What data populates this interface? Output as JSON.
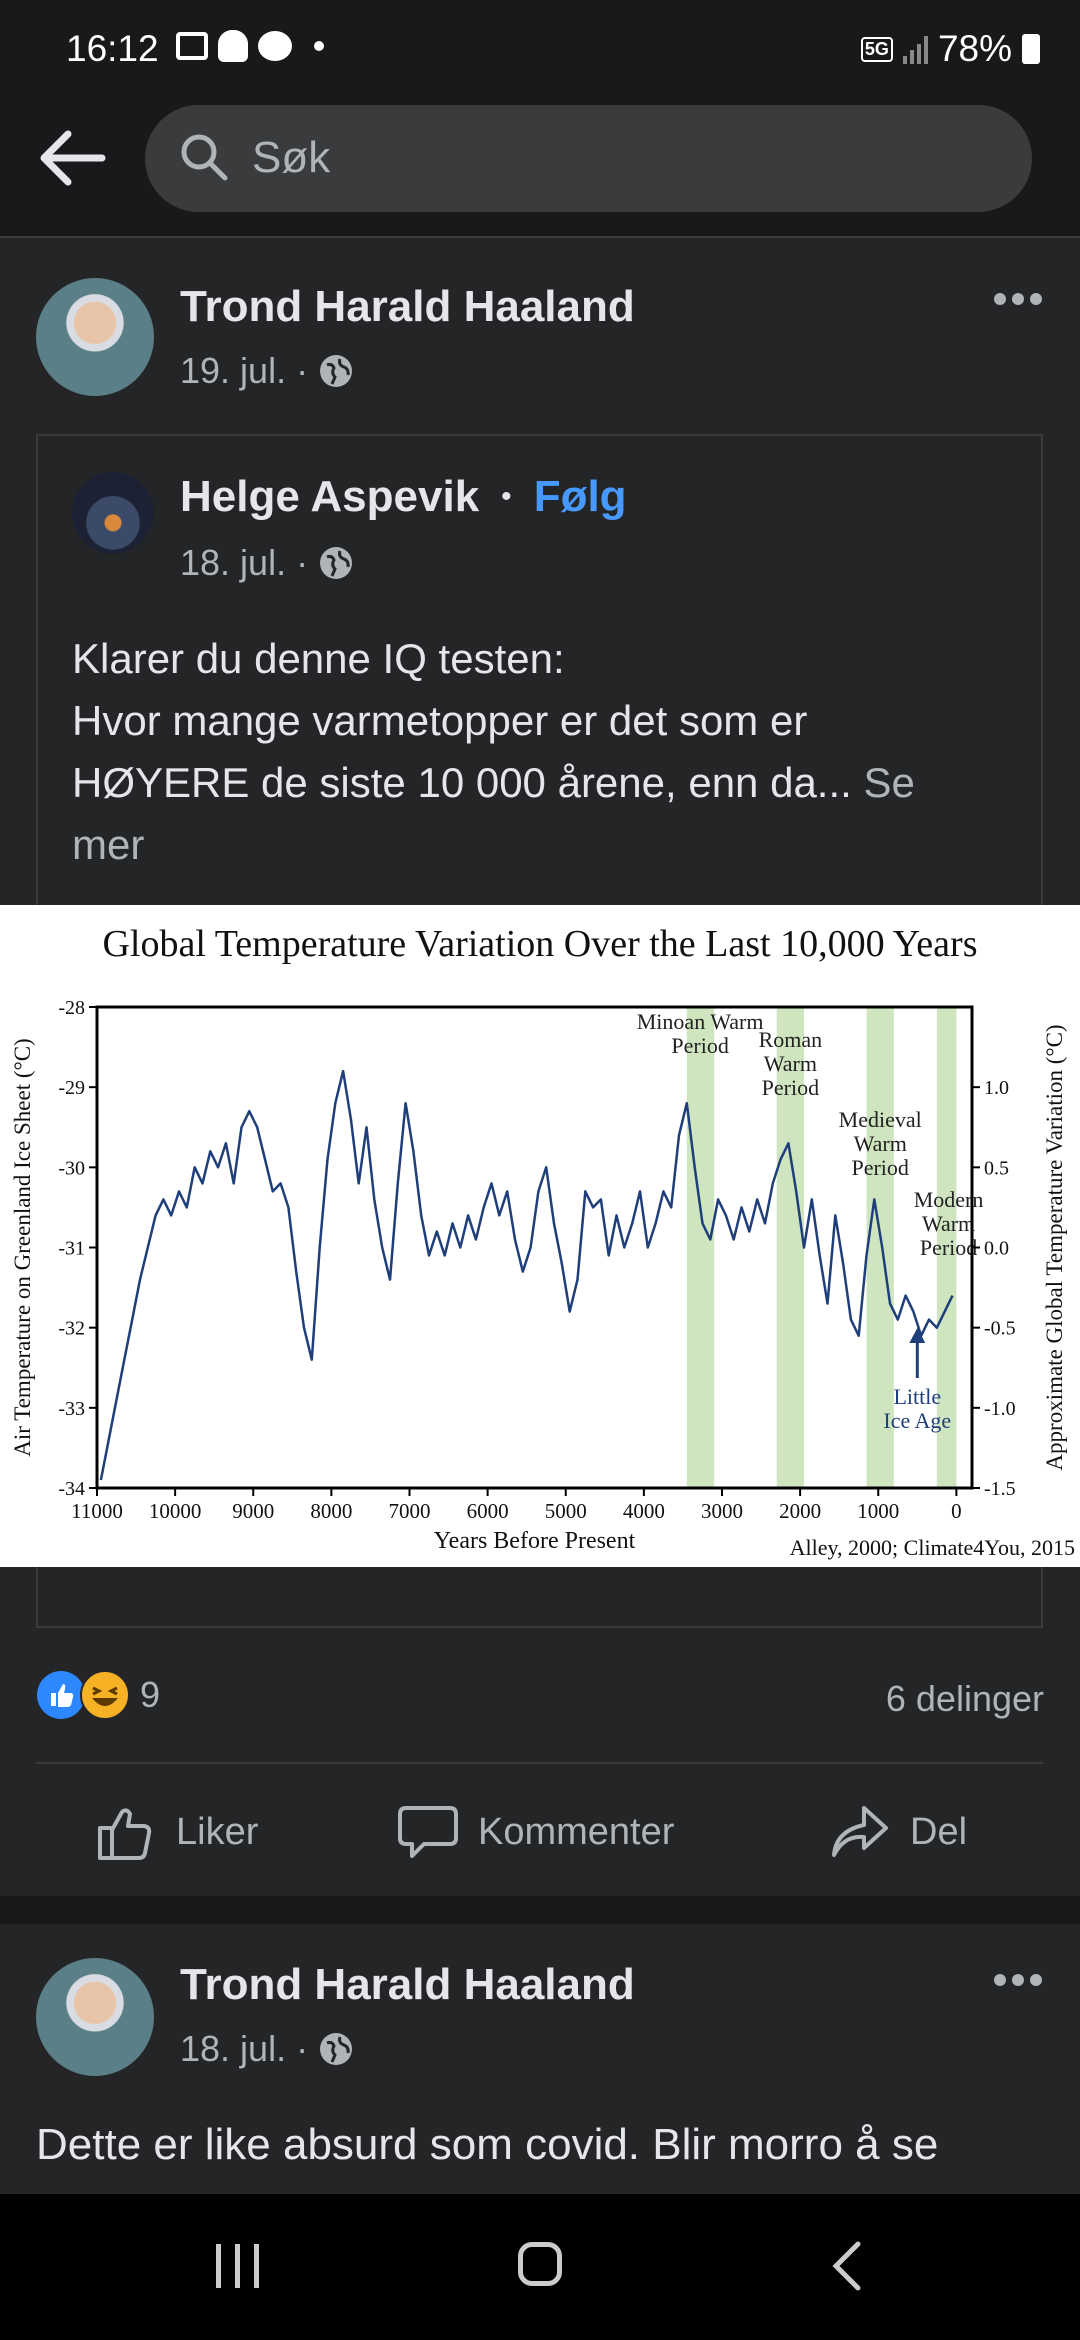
{
  "status": {
    "time": "16:12",
    "network": "5G",
    "battery": "78%"
  },
  "search": {
    "placeholder": "Søk"
  },
  "post": {
    "author": "Trond Harald Haaland",
    "date": "19. jul. ·",
    "shared": {
      "author": "Helge Aspevik",
      "dot": "•",
      "follow": "Følg",
      "date": "18. jul. ·",
      "text_line1": "Klarer du denne IQ testen:",
      "text_line2": "Hvor mange varmetopper er det som er",
      "text_line3": "HØYERE de siste 10 000 årene, enn da...",
      "see_more_1": " Se",
      "see_more_2": "mer"
    },
    "reactions_count": "9",
    "shares": "6 delinger",
    "actions": {
      "like": "Liker",
      "comment": "Kommenter",
      "share": "Del"
    }
  },
  "post2": {
    "author": "Trond Harald Haaland",
    "date": "18. jul. ·",
    "text": "Dette er like absurd som covid. Blir morro å se"
  },
  "chart_data": {
    "type": "line",
    "title": "Global Temperature Variation Over the Last 10,000 Years",
    "xlabel": "Years Before Present",
    "ylabel": "Air Temperature on Greenland Ice Sheet (°C)",
    "y2label": "Approximate Global Temperature Variation (°C)",
    "xlim": [
      11000,
      -200
    ],
    "ylim": [
      -34,
      -28
    ],
    "y2lim": [
      -1.5,
      1.5
    ],
    "xticks": [
      11000,
      10000,
      9000,
      8000,
      7000,
      6000,
      5000,
      4000,
      3000,
      2000,
      1000,
      0
    ],
    "xtick_labels": [
      "11000",
      "10000",
      "9000",
      "8000",
      "7000",
      "6000",
      "5000",
      "4000",
      "3000",
      "2000",
      "1000",
      "0"
    ],
    "yticks": [
      -28,
      -29,
      -30,
      -31,
      -32,
      -33,
      -34
    ],
    "ytick_labels": [
      "-28",
      "-29",
      "-30",
      "-31",
      "-32",
      "-33",
      "-34"
    ],
    "y2ticks": [
      1.0,
      0.5,
      0.0,
      -0.5,
      -1.0,
      -1.5
    ],
    "y2tick_labels": [
      "1.0",
      "0.5",
      "0.0",
      "-0.5",
      "-1.0",
      "-1.5"
    ],
    "source": "Alley, 2000; Climate4You, 2015",
    "periods": [
      {
        "name1": "Minoan Warm",
        "name2": "Period",
        "name3": "",
        "from": 3450,
        "to": 3100
      },
      {
        "name1": "Roman",
        "name2": "Warm",
        "name3": "Period",
        "from": 2300,
        "to": 1950
      },
      {
        "name1": "Medieval",
        "name2": "Warm",
        "name3": "Period",
        "from": 1150,
        "to": 800
      },
      {
        "name1": "Modern",
        "name2": "Warm",
        "name3": "Period",
        "from": 250,
        "to": 0
      }
    ],
    "annotation": {
      "line1": "Little",
      "line2": "Ice Age",
      "x": 500
    },
    "series": [
      {
        "x": [
          10950,
          10850,
          10750,
          10650,
          10550,
          10450,
          10350,
          10250,
          10150,
          10050,
          9950,
          9850,
          9750,
          9650,
          9550,
          9450,
          9350,
          9250,
          9150,
          9050,
          8950,
          8850,
          8750,
          8650,
          8550,
          8450,
          8350,
          8250,
          8150,
          8050,
          7950,
          7850,
          7750,
          7650,
          7550,
          7450,
          7350,
          7250,
          7150,
          7050,
          6950,
          6850,
          6750,
          6650,
          6550,
          6450,
          6350,
          6250,
          6150,
          6050,
          5950,
          5850,
          5750,
          5650,
          5550,
          5450,
          5350,
          5250,
          5150,
          5050,
          4950,
          4850,
          4750,
          4650,
          4550,
          4450,
          4350,
          4250,
          4150,
          4050,
          3950,
          3850,
          3750,
          3650,
          3550,
          3450,
          3350,
          3250,
          3150,
          3050,
          2950,
          2850,
          2750,
          2650,
          2550,
          2450,
          2350,
          2250,
          2150,
          2050,
          1950,
          1850,
          1750,
          1650,
          1550,
          1450,
          1350,
          1250,
          1150,
          1050,
          950,
          850,
          750,
          650,
          550,
          450,
          350,
          250,
          150,
          50
        ],
        "values": [
          -33.9,
          -33.4,
          -32.9,
          -32.4,
          -31.9,
          -31.4,
          -31.0,
          -30.6,
          -30.4,
          -30.6,
          -30.3,
          -30.5,
          -30.0,
          -30.2,
          -29.8,
          -30.0,
          -29.7,
          -30.2,
          -29.5,
          -29.3,
          -29.5,
          -29.9,
          -30.3,
          -30.2,
          -30.5,
          -31.3,
          -32.0,
          -32.4,
          -31.0,
          -29.9,
          -29.2,
          -28.8,
          -29.4,
          -30.2,
          -29.5,
          -30.4,
          -31.0,
          -31.4,
          -30.2,
          -29.2,
          -29.8,
          -30.6,
          -31.1,
          -30.8,
          -31.1,
          -30.7,
          -31.0,
          -30.6,
          -30.9,
          -30.5,
          -30.2,
          -30.6,
          -30.3,
          -30.9,
          -31.3,
          -31.0,
          -30.3,
          -30.0,
          -30.7,
          -31.2,
          -31.8,
          -31.4,
          -30.3,
          -30.5,
          -30.4,
          -31.1,
          -30.6,
          -31.0,
          -30.7,
          -30.3,
          -31.0,
          -30.7,
          -30.3,
          -30.5,
          -29.6,
          -29.2,
          -30.0,
          -30.7,
          -30.9,
          -30.4,
          -30.6,
          -30.9,
          -30.5,
          -30.8,
          -30.4,
          -30.7,
          -30.2,
          -29.9,
          -29.7,
          -30.3,
          -31.0,
          -30.4,
          -31.1,
          -31.7,
          -30.6,
          -31.2,
          -31.9,
          -32.1,
          -31.1,
          -30.4,
          -31.0,
          -31.7,
          -31.9,
          -31.6,
          -31.8,
          -32.1,
          -31.9,
          -32.0,
          -31.8,
          -31.6
        ]
      }
    ]
  }
}
